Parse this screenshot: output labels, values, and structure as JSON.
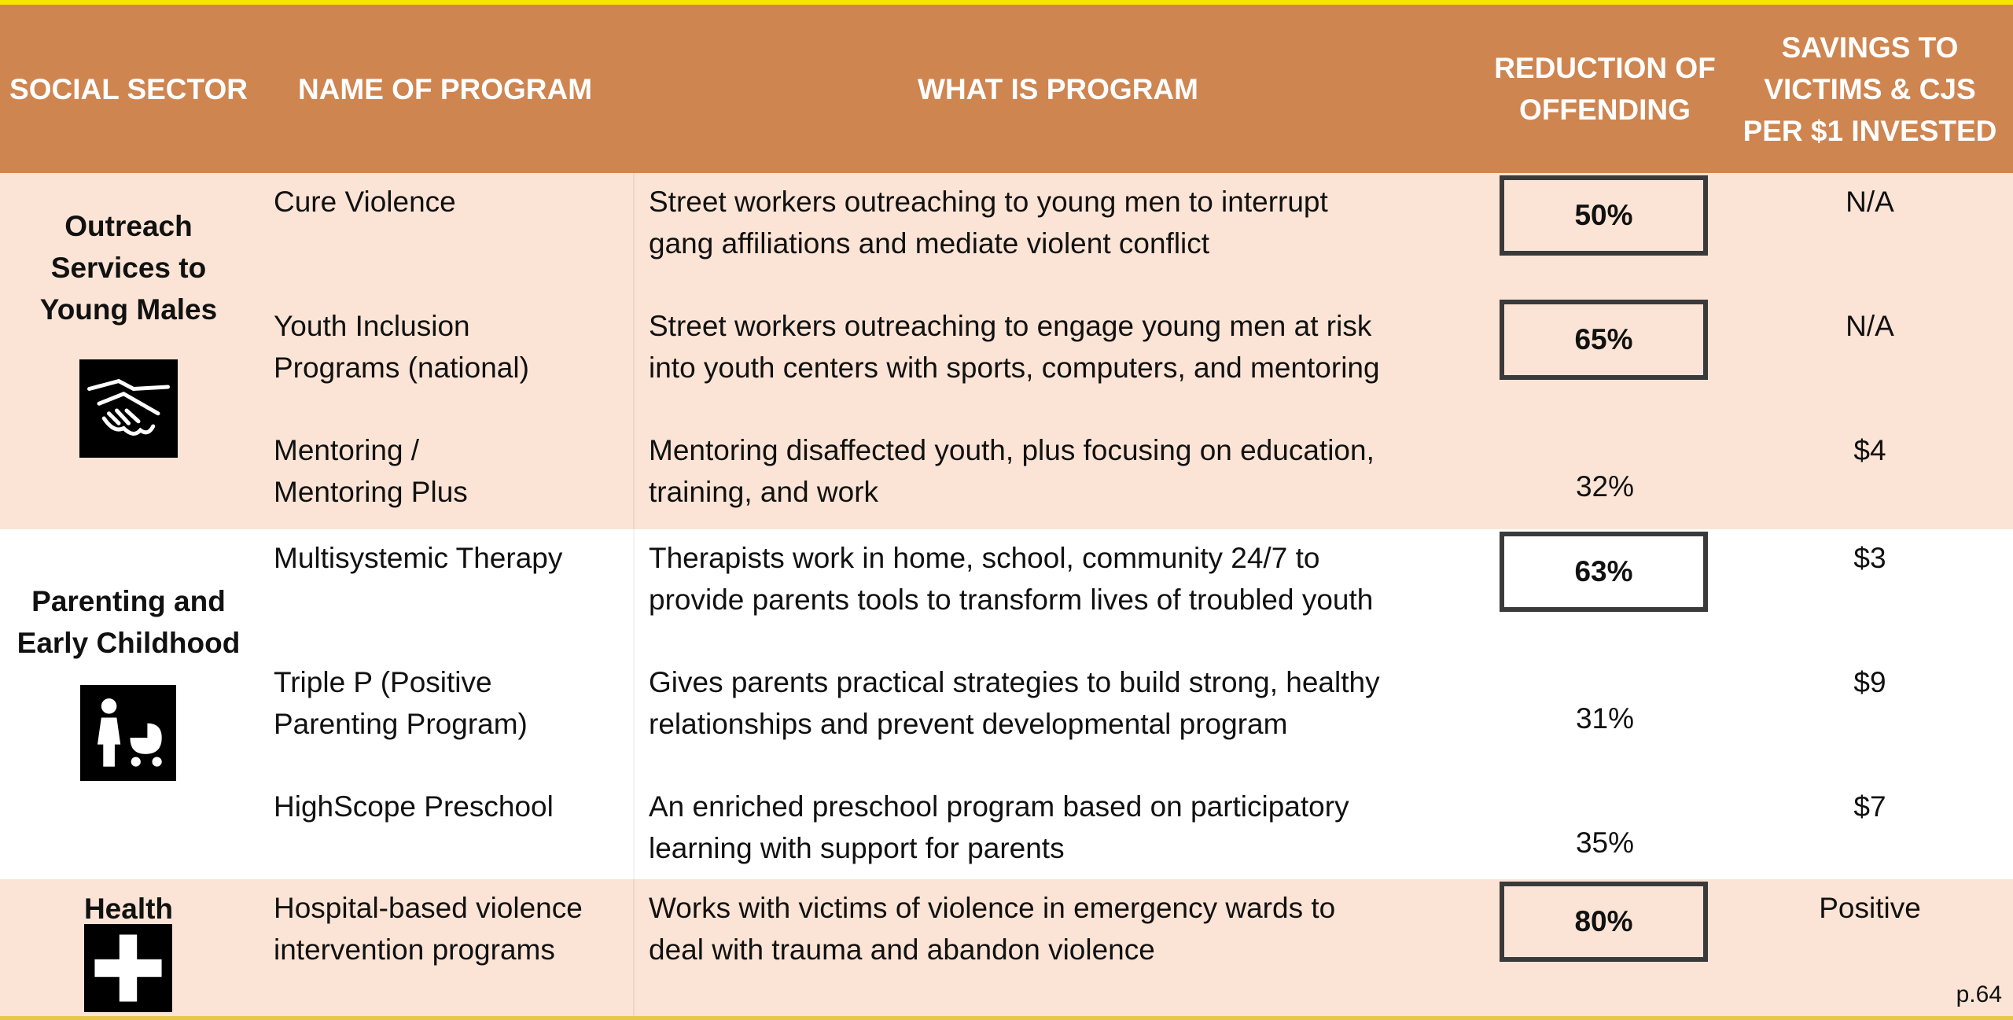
{
  "table": {
    "headers": [
      [
        "SOCIAL SECTOR"
      ],
      [
        "NAME OF PROGRAM"
      ],
      [
        "WHAT IS PROGRAM"
      ],
      [
        "REDUCTION OF",
        "OFFENDING"
      ],
      [
        "SAVINGS TO",
        "VICTIMS & CJS",
        "PER $1 INVESTED"
      ]
    ],
    "groups": [
      {
        "sector": [
          "Outreach",
          "Services to",
          "Young Males"
        ],
        "icon": "handshake",
        "shaded": true,
        "rows": [
          {
            "name": [
              "Cure Violence"
            ],
            "description": [
              "Street workers outreaching to young men to interrupt",
              "gang affiliations and mediate violent conflict"
            ],
            "reduction": "50%",
            "boxed": true,
            "savings": "N/A"
          },
          {
            "name": [
              "Youth Inclusion",
              "Programs (national)"
            ],
            "description": [
              "Street workers outreaching to engage young men at risk",
              "into youth centers with sports, computers, and mentoring"
            ],
            "reduction": "65%",
            "boxed": true,
            "savings": "N/A"
          },
          {
            "name": [
              "Mentoring /",
              "Mentoring Plus"
            ],
            "description": [
              "Mentoring disaffected youth, plus focusing on education,",
              "training, and work"
            ],
            "reduction": "32%",
            "boxed": false,
            "savings": "$4"
          }
        ]
      },
      {
        "sector": [
          "Parenting and",
          "Early Childhood"
        ],
        "icon": "parent",
        "shaded": false,
        "rows": [
          {
            "name": [
              "Multisystemic Therapy"
            ],
            "description": [
              "Therapists work in home, school, community 24/7 to",
              "provide parents tools to transform lives of troubled youth"
            ],
            "reduction": "63%",
            "boxed": true,
            "savings": "$3"
          },
          {
            "name": [
              "Triple P (Positive",
              "Parenting Program)"
            ],
            "description": [
              "Gives parents practical strategies to build strong, healthy",
              "relationships and prevent developmental program"
            ],
            "reduction": "31%",
            "boxed": false,
            "savings": "$9"
          },
          {
            "name": [
              "HighScope Preschool"
            ],
            "description": [
              "An enriched preschool program based on participatory",
              "learning with support for parents"
            ],
            "reduction": "35%",
            "boxed": false,
            "savings": "$7"
          }
        ]
      },
      {
        "sector": [
          "Health"
        ],
        "icon": "cross",
        "shaded": true,
        "rows": [
          {
            "name": [
              "Hospital-based violence",
              "intervention programs"
            ],
            "description": [
              "Works with victims of violence in emergency wards to",
              "deal with trauma and abandon violence"
            ],
            "reduction": "80%",
            "boxed": true,
            "savings": "Positive"
          }
        ]
      }
    ],
    "page_number": "p.64"
  }
}
